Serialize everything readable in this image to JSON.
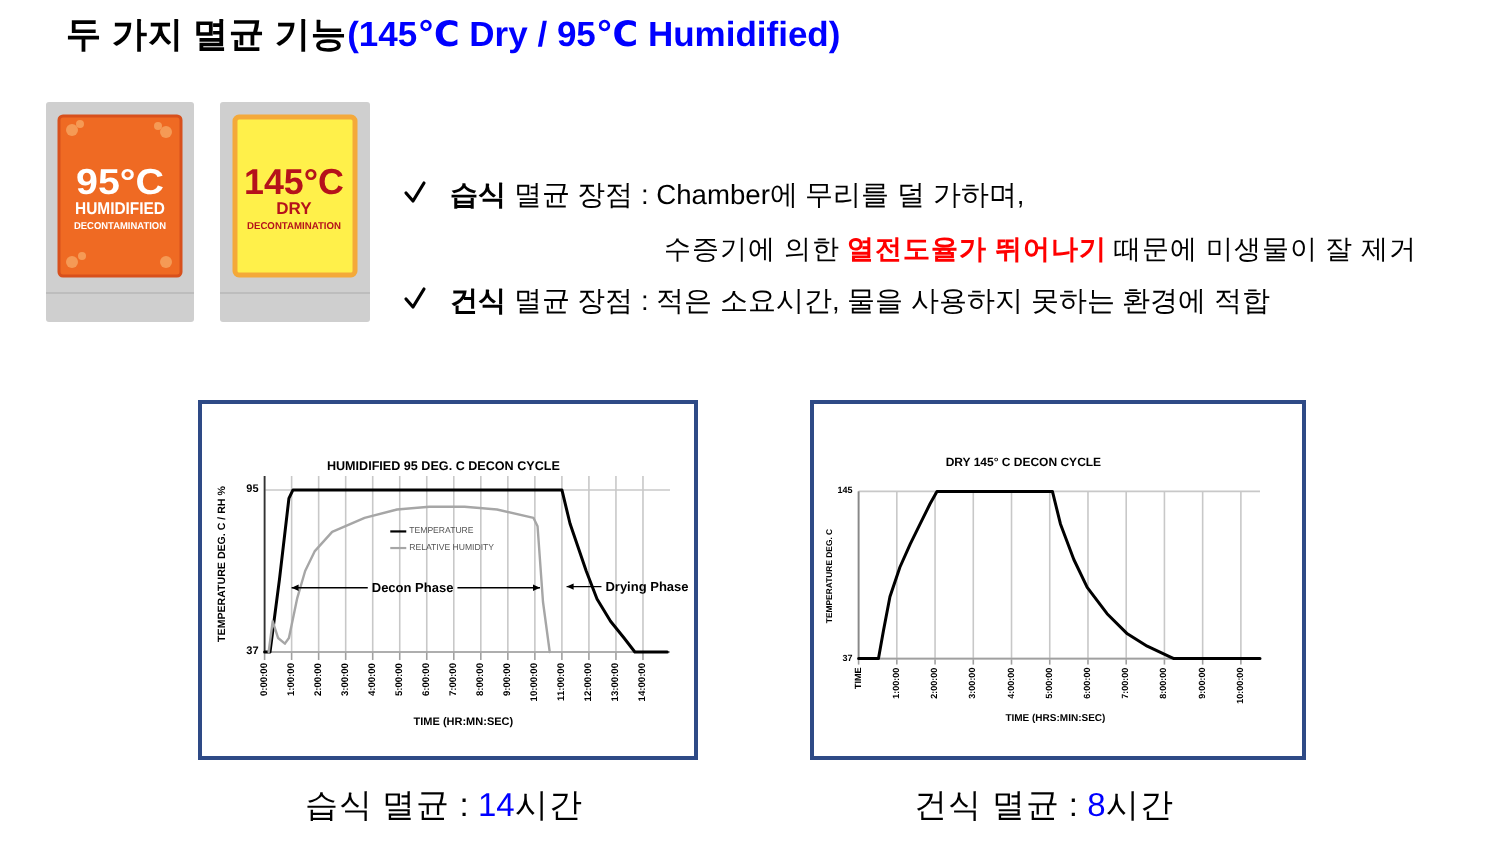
{
  "chart_data": [
    {
      "type": "other",
      "title": "두 가지 멸균 기능",
      "subtitle": "(145℃ Dry / 95℃ Humidified)",
      "annotations": [
        "95°C",
        "HUMIDIFIED",
        "DECONTAMINATION",
        "145°C",
        "DRY",
        "DECONTAMINATION",
        "**습식** 멸균 장점 : Chamber에 무리를 덜 가하며,",
        "수증기에 의한 **열전도율가 뛰어나기** 때문에 미생물이 잘 제거",
        "**건식** 멸균 장점 : 적은 소요시간, 물을 사용하지 못하는 환경에 적합"
      ]
    },
    {
      "type": "line",
      "title": "HUMIDIFIED 95 DEG. C DECON CYCLE",
      "xlabel": "TIME (HR:MN:SEC)",
      "ylabel": "TEMPERATURE DEG. C / RH %",
      "series": [
        {
          "name": "TEMPERATURE",
          "color": "#000000",
          "x": [
            0,
            0.2,
            0.55,
            0.9,
            1.05,
            11.0,
            11.3,
            11.9,
            12.3,
            12.8,
            13.3,
            13.7,
            14.9
          ],
          "values": [
            37,
            37,
            63,
            92,
            95,
            95,
            83,
            66,
            56,
            48,
            42,
            37,
            37
          ]
        },
        {
          "name": "RELATIVE HUMIDITY",
          "color": "#a6a6a6",
          "x": [
            0.15,
            0.3,
            0.5,
            0.75,
            0.9,
            1.2,
            1.5,
            1.85,
            2.5,
            3.7,
            4.9,
            6.1,
            7.4,
            8.6,
            9.95,
            10.1,
            10.3,
            10.55
          ],
          "values": [
            37,
            48,
            42,
            40,
            42,
            56,
            66,
            73,
            80,
            85,
            88,
            89,
            89,
            88,
            85,
            82,
            55,
            37
          ]
        }
      ],
      "xlim": [
        0,
        15
      ],
      "xticks": [
        {
          "value": 0,
          "label": "0:00:00"
        },
        {
          "value": 1,
          "label": "1:00:00"
        },
        {
          "value": 2,
          "label": "2:00:00"
        },
        {
          "value": 3,
          "label": "3:00:00"
        },
        {
          "value": 4,
          "label": "4:00:00"
        },
        {
          "value": 5,
          "label": "5:00:00"
        },
        {
          "value": 6,
          "label": "6:00:00"
        },
        {
          "value": 7,
          "label": "7:00:00"
        },
        {
          "value": 8,
          "label": "8:00:00"
        },
        {
          "value": 9,
          "label": "9:00:00"
        },
        {
          "value": 10,
          "label": "10:00:00"
        },
        {
          "value": 11,
          "label": "11:00:00"
        },
        {
          "value": 12,
          "label": "12:00:00"
        },
        {
          "value": 13,
          "label": "13:00:00"
        },
        {
          "value": 14,
          "label": "14:00:00"
        }
      ],
      "ylim": [
        37,
        100
      ],
      "yticks": [
        37,
        95
      ],
      "grid": true,
      "legend": "top",
      "annotations": [
        {
          "text": "Decon Phase",
          "x": 1.0,
          "y": 60
        },
        "Drying Phase",
        "습식 멸균 : 14시간"
      ]
    },
    {
      "type": "line",
      "title": "DRY 145° C DECON CYCLE",
      "xlabel": "TIME (HRS:MIN:SEC)",
      "ylabel": "TEMPERATURE DEG. C",
      "series": [
        {
          "color": "#000000",
          "x": [
            0,
            0.52,
            0.65,
            0.82,
            1.08,
            1.35,
            1.61,
            1.87,
            2.05,
            5.07,
            5.28,
            5.63,
            5.98,
            6.5,
            7.03,
            7.55,
            8.16,
            8.25,
            10.5
          ],
          "values": [
            37,
            37,
            55,
            77,
            96,
            111,
            124,
            137,
            145,
            145,
            124,
            101,
            83,
            66,
            53,
            45,
            38,
            37,
            37
          ]
        }
      ],
      "xlim": [
        0,
        10.5
      ],
      "xticks": [
        {
          "value": 0,
          "label": "TIME"
        },
        {
          "value": 1,
          "label": "1:00:00"
        },
        {
          "value": 2,
          "label": "2:00:00"
        },
        {
          "value": 3,
          "label": "3:00:00"
        },
        {
          "value": 4,
          "label": "4:00:00"
        },
        {
          "value": 5,
          "label": "5:00:00"
        },
        {
          "value": 6,
          "label": "6:00:00"
        },
        {
          "value": 7,
          "label": "7:00:00"
        },
        {
          "value": 8,
          "label": "8:00:00"
        },
        {
          "value": 9,
          "label": "9:00:00"
        },
        {
          "value": 10,
          "label": "10:00:00"
        }
      ],
      "ylim": [
        37,
        145
      ],
      "yticks": [
        37,
        145
      ],
      "grid": true,
      "annotations": [
        "건식 멸균 : 8시간"
      ]
    }
  ]
}
